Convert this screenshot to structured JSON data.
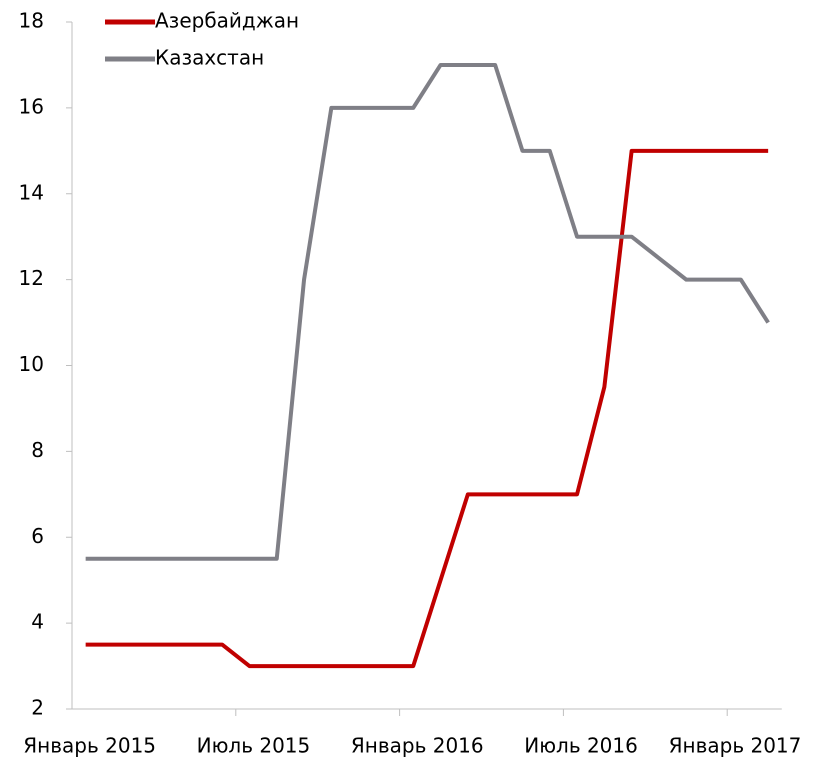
{
  "chart_data": {
    "type": "line",
    "categories": [
      "Январь 2015",
      null,
      null,
      null,
      null,
      null,
      "Июль 2015",
      null,
      null,
      null,
      null,
      null,
      "Январь 2016",
      null,
      null,
      null,
      null,
      null,
      "Июль 2016",
      null,
      null,
      null,
      null,
      null,
      "Январь 2017",
      null
    ],
    "series": [
      {
        "name": "Азербайджан",
        "color": "#c00000",
        "values": [
          3.5,
          3.5,
          3.5,
          3.5,
          3.5,
          3.5,
          3,
          3,
          3,
          3,
          3,
          3,
          3,
          5,
          7,
          7,
          7,
          7,
          7,
          9.5,
          15,
          15,
          15,
          15,
          15,
          15
        ]
      },
      {
        "name": "Казахстан",
        "color": "#7f7f86",
        "values": [
          5.5,
          5.5,
          5.5,
          5.5,
          5.5,
          5.5,
          5.5,
          5.5,
          12,
          16,
          16,
          16,
          16,
          17,
          17,
          17,
          15,
          15,
          13,
          13,
          13,
          12.5,
          12,
          12,
          12,
          11
        ]
      }
    ],
    "ylim": [
      2,
      18
    ],
    "yticks": [
      2,
      4,
      6,
      8,
      10,
      12,
      14,
      16,
      18
    ],
    "grid": false,
    "legend": "top-left"
  }
}
